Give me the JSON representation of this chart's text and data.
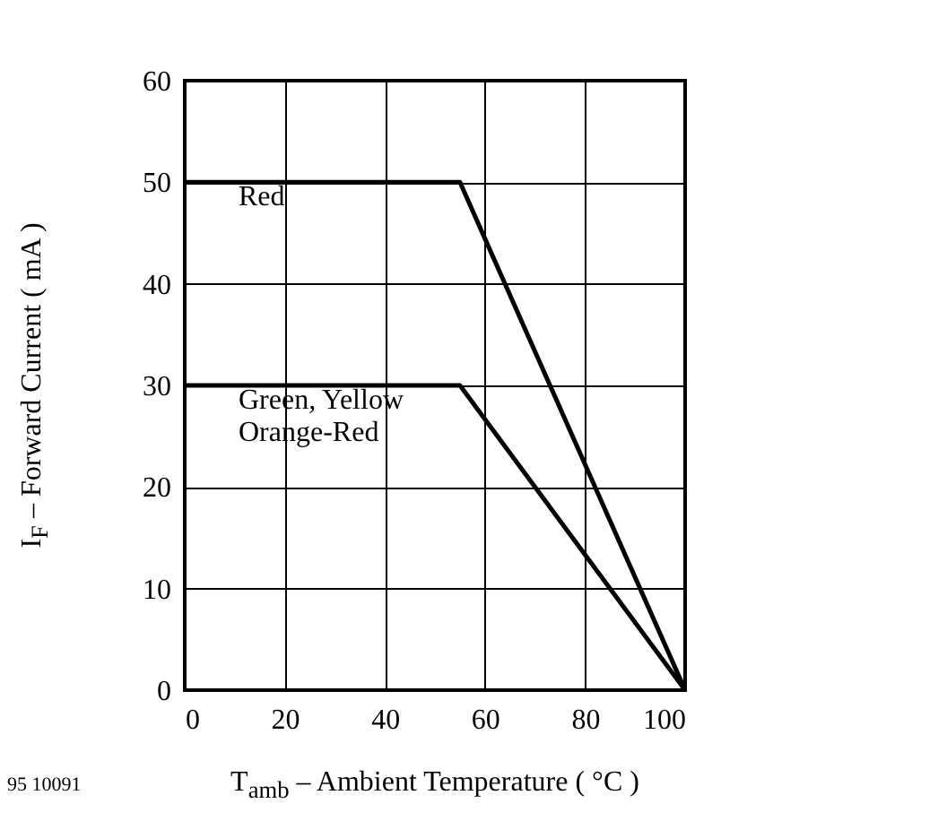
{
  "chart_data": {
    "type": "line",
    "xlabel": "T$_{amb}$ – Ambient Temperature ( °C )",
    "ylabel": "I$_{F}$ – Forward Current ( mA )",
    "annotations": [
      "95 10091"
    ],
    "xlim": [
      0,
      100
    ],
    "ylim": [
      0,
      60
    ],
    "xticks": [
      0,
      20,
      40,
      60,
      80,
      100
    ],
    "yticks": [
      0,
      10,
      20,
      30,
      40,
      50,
      60
    ],
    "grid": true,
    "legend": false,
    "line_style": "solid",
    "marker": "none",
    "series": [
      {
        "name": "Red",
        "color": "#000000",
        "x": [
          0,
          55,
          100
        ],
        "values": [
          50,
          50,
          0
        ]
      },
      {
        "name": "Green, Yellow\nOrange-Red",
        "color": "#000000",
        "x": [
          0,
          55,
          100
        ],
        "values": [
          30,
          30,
          0
        ]
      }
    ]
  }
}
